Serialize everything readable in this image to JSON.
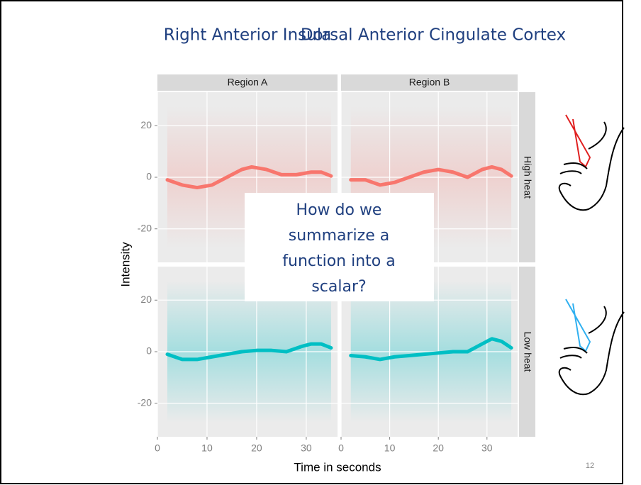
{
  "slide": {
    "headings": [
      "Right Anterior Insula",
      "Dorsal Anterior Cingulate Cortex"
    ],
    "question": [
      "How do we",
      "summarize a",
      "function into a",
      "scalar?"
    ],
    "page_number": "12"
  },
  "facet_grid": {
    "columns": [
      "Region A",
      "Region B"
    ],
    "rows": [
      "High heat",
      "Low heat"
    ],
    "xlabel": "Time in seconds",
    "ylabel": "Intensity"
  },
  "chart_data": [
    {
      "type": "line",
      "x": [
        2,
        5,
        8,
        11,
        14,
        17,
        19,
        22,
        25,
        28,
        31,
        33,
        35
      ],
      "values": [
        -1,
        -3,
        -4,
        -3,
        0,
        3,
        4,
        3,
        1,
        1,
        2,
        2,
        0.5
      ],
      "color": "#f8766d",
      "xlim": [
        0,
        36.3
      ],
      "ylim": [
        -33,
        33
      ],
      "xticks": [
        0,
        10,
        20,
        30
      ],
      "yticks": [
        -20,
        0,
        20
      ],
      "grid": true
    },
    {
      "type": "line",
      "x": [
        2,
        5,
        8,
        11,
        14,
        17,
        20,
        23,
        26,
        29,
        31,
        33,
        35
      ],
      "values": [
        -1,
        -1,
        -3,
        -2,
        0,
        2,
        3,
        2,
        0,
        3,
        4,
        3,
        0.5
      ],
      "color": "#f8766d",
      "xlim": [
        0,
        36.3
      ],
      "ylim": [
        -33,
        33
      ],
      "xticks": [
        0,
        10,
        20,
        30
      ],
      "yticks": [
        -20,
        0,
        20
      ],
      "grid": true
    },
    {
      "type": "line",
      "x": [
        2,
        5,
        8,
        11,
        14,
        17,
        20,
        23,
        26,
        29,
        31,
        33,
        35
      ],
      "values": [
        -1,
        -3,
        -3,
        -2,
        -1,
        0,
        0.5,
        0.5,
        0,
        2,
        3,
        3,
        1.5
      ],
      "color": "#00bfc4",
      "xlim": [
        0,
        36.3
      ],
      "ylim": [
        -33,
        33
      ],
      "xticks": [
        0,
        10,
        20,
        30
      ],
      "yticks": [
        -20,
        0,
        20
      ],
      "grid": true
    },
    {
      "type": "line",
      "x": [
        2,
        5,
        8,
        11,
        14,
        17,
        20,
        23,
        26,
        29,
        31,
        33,
        35
      ],
      "values": [
        -1.5,
        -2,
        -3,
        -2,
        -1.5,
        -1,
        -0.5,
        0,
        0,
        3,
        5,
        4,
        1.5
      ],
      "color": "#00bfc4",
      "xlim": [
        0,
        36.3
      ],
      "ylim": [
        -33,
        33
      ],
      "xticks": [
        0,
        10,
        20,
        30
      ],
      "yticks": [
        -20,
        0,
        20
      ],
      "grid": true
    }
  ]
}
